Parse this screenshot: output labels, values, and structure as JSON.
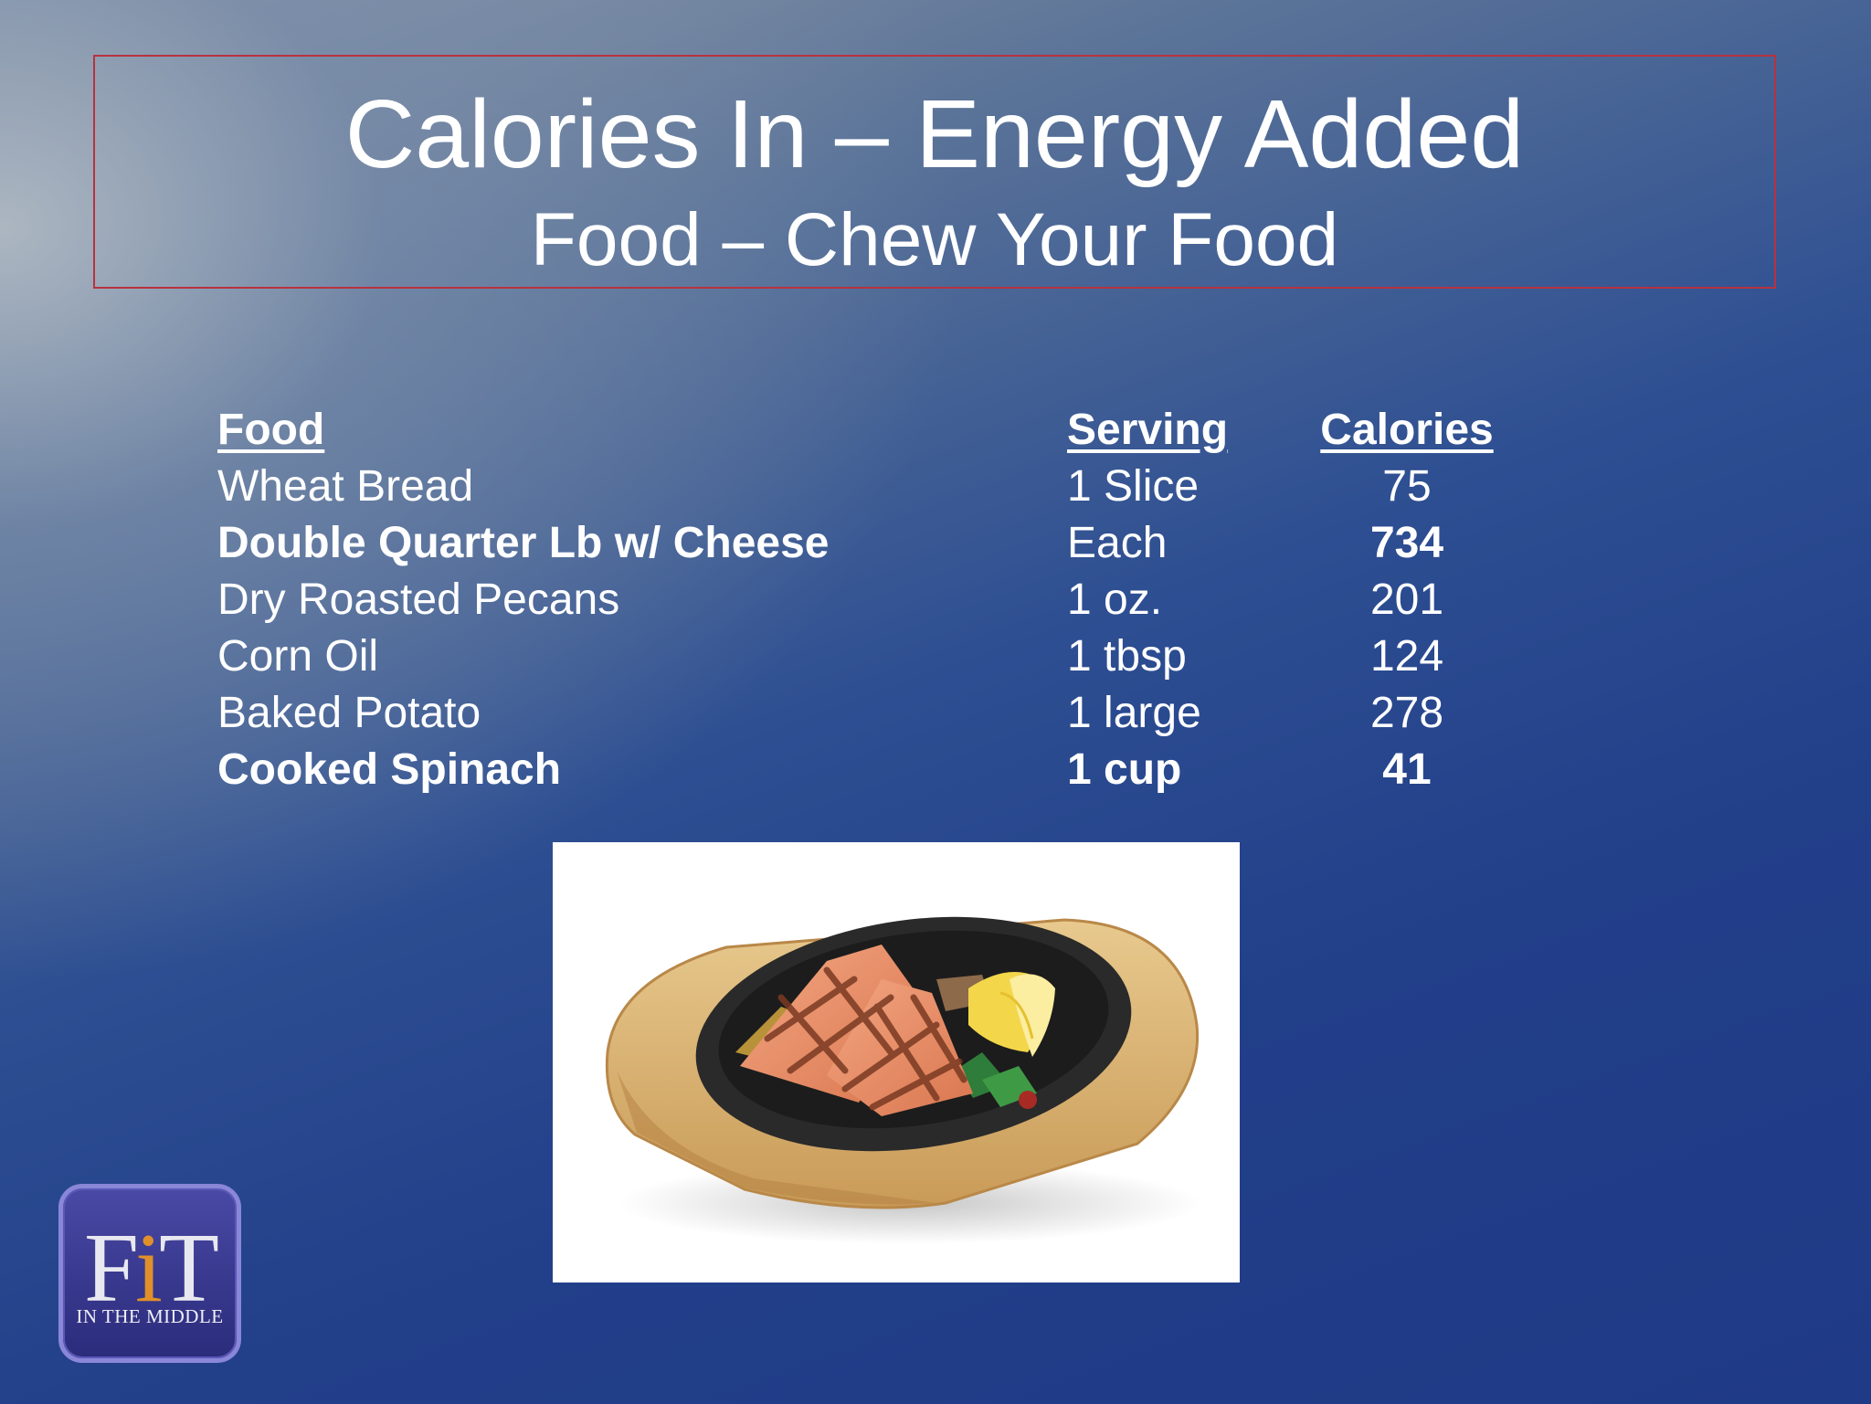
{
  "slide": {
    "title": "Calories In – Energy Added",
    "subtitle": "Food – Chew Your Food"
  },
  "table": {
    "headers": {
      "food": "Food",
      "serving": "Serving",
      "calories": "Calories"
    },
    "rows": [
      {
        "food": "Wheat Bread",
        "serving": "1 Slice",
        "calories": "75",
        "bold": false
      },
      {
        "food": "Double Quarter Lb w/ Cheese",
        "serving": "Each",
        "calories": "734",
        "bold": true
      },
      {
        "food": "Dry Roasted Pecans",
        "serving": "1 oz.",
        "calories": "201",
        "bold": false
      },
      {
        "food": "Corn Oil",
        "serving": "1 tbsp",
        "calories": "124",
        "bold": false
      },
      {
        "food": "Baked Potato",
        "serving": "1 large",
        "calories": "278",
        "bold": false
      },
      {
        "food": "Cooked Spinach",
        "serving": "1 cup",
        "calories": "41",
        "bold": true
      }
    ]
  },
  "logo": {
    "letter_f": "F",
    "letter_i": "i",
    "letter_t": "T",
    "tagline": "IN THE MIDDLE"
  },
  "colors": {
    "title_border": "#b8323f",
    "logo_accent": "#e0902a"
  }
}
